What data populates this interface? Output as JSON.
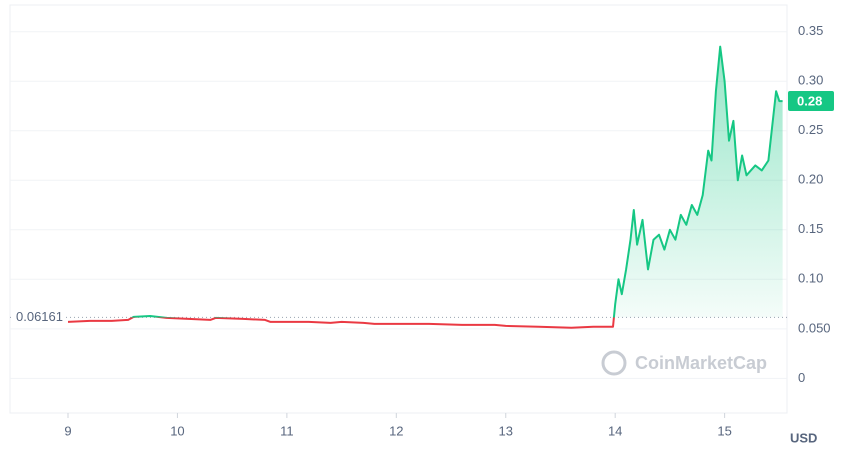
{
  "chart_data": {
    "type": "line",
    "series": [
      {
        "color": "#16c784",
        "down_color": "#ea3943",
        "x": [
          9.0,
          9.2,
          9.4,
          9.55,
          9.6,
          9.75,
          9.9,
          10.1,
          10.3,
          10.35,
          10.6,
          10.8,
          10.85,
          11.2,
          11.4,
          11.5,
          11.7,
          11.8,
          12.0,
          12.3,
          12.6,
          12.9,
          13.0,
          13.3,
          13.6,
          13.8,
          13.98,
          14.0,
          14.03,
          14.06,
          14.1,
          14.14,
          14.17,
          14.2,
          14.25,
          14.3,
          14.35,
          14.4,
          14.45,
          14.5,
          14.55,
          14.6,
          14.65,
          14.7,
          14.75,
          14.8,
          14.85,
          14.88,
          14.92,
          14.96,
          15.0,
          15.04,
          15.08,
          15.12,
          15.16,
          15.2,
          15.28,
          15.34,
          15.4,
          15.44,
          15.47,
          15.5,
          15.53
        ],
        "values": [
          0.057,
          0.058,
          0.058,
          0.059,
          0.062,
          0.063,
          0.061,
          0.06,
          0.059,
          0.061,
          0.06,
          0.059,
          0.057,
          0.057,
          0.056,
          0.057,
          0.056,
          0.055,
          0.055,
          0.055,
          0.054,
          0.054,
          0.053,
          0.052,
          0.051,
          0.052,
          0.052,
          0.075,
          0.1,
          0.085,
          0.11,
          0.14,
          0.17,
          0.135,
          0.16,
          0.11,
          0.14,
          0.145,
          0.13,
          0.15,
          0.14,
          0.165,
          0.155,
          0.175,
          0.165,
          0.185,
          0.23,
          0.22,
          0.29,
          0.335,
          0.3,
          0.24,
          0.26,
          0.2,
          0.225,
          0.205,
          0.215,
          0.21,
          0.22,
          0.26,
          0.29,
          0.28,
          0.28
        ]
      }
    ],
    "baseline": {
      "value": 0.06161,
      "label": "0.06161"
    },
    "current": {
      "value": 0.28,
      "label": "0.28"
    },
    "watermark": "CoinMarketCap",
    "currency": "USD",
    "xlim": [
      8.47,
      15.57
    ],
    "ylim": [
      -0.035,
      0.377
    ],
    "xticks": [
      9,
      10,
      11,
      12,
      13,
      14,
      15
    ],
    "yticks": [
      0.35,
      {
        "value": 0.3,
        "label": "0.30"
      },
      0.25,
      {
        "value": 0.2,
        "label": "0.20"
      },
      0.15,
      {
        "value": 0.1,
        "label": "0.10"
      },
      {
        "value": 0.05,
        "label": "0.050"
      },
      0
    ],
    "grid": true
  }
}
